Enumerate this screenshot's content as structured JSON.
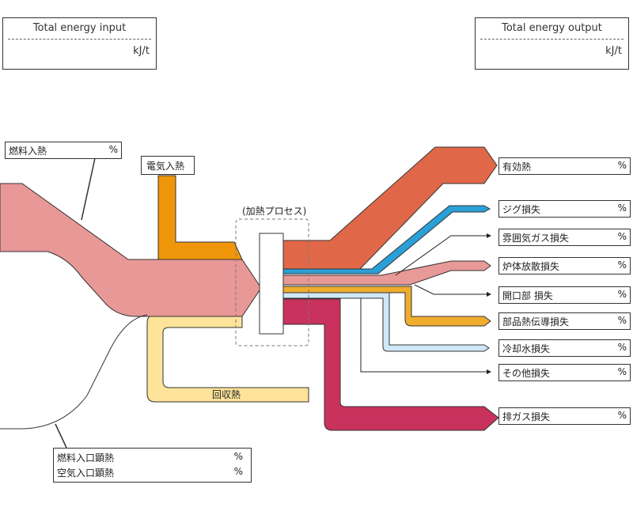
{
  "total_input": {
    "title": "Total energy input",
    "unit": "kJ/t"
  },
  "total_output": {
    "title": "Total energy output",
    "unit": "kJ/t"
  },
  "inputs": {
    "fuel": {
      "label": "燃料入熱",
      "pct": "%"
    },
    "electric": {
      "label": "電気入熱"
    },
    "sensible": [
      {
        "label": "燃料入口顕熱",
        "pct": "%"
      },
      {
        "label": "空気入口顕熱",
        "pct": "%"
      }
    ]
  },
  "process": {
    "label": "(加熱プロセス)"
  },
  "recovered": {
    "label": "回収熱"
  },
  "outputs": [
    {
      "label": "有効熱",
      "pct": "%",
      "color": "#e06848"
    },
    {
      "label": "ジグ損失",
      "pct": "%",
      "color": "#2a9fd8"
    },
    {
      "label": "雰囲気ガス損失",
      "pct": "%",
      "color": "#ffffff"
    },
    {
      "label": "炉体放散損失",
      "pct": "%",
      "color": "#e89a98"
    },
    {
      "label": "開口部 損失",
      "pct": "%",
      "color": "#ffffff"
    },
    {
      "label": "部品熱伝導損失",
      "pct": "%",
      "color": "#f0ac2e"
    },
    {
      "label": "冷却水損失",
      "pct": "%",
      "color": "#cfe8f8"
    },
    {
      "label": "その他損失",
      "pct": "%",
      "color": "#ffffff"
    },
    {
      "label": "排ガス損失",
      "pct": "%",
      "color": "#c9325c"
    }
  ],
  "colors": {
    "fuel_input": "#e89896",
    "electric_input": "#f0960a",
    "recovered_heat": "#fde49a",
    "process_box": "#ffffff"
  }
}
